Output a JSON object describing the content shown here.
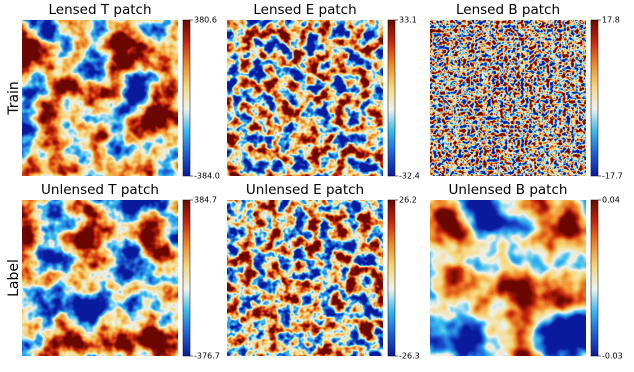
{
  "row_labels": [
    "Train",
    "Label"
  ],
  "colormap": [
    "#0a1a9c",
    "#1f5fd6",
    "#33b8ee",
    "#eef2ee",
    "#f6d77a",
    "#f08a28",
    "#c8280e",
    "#6a0800"
  ],
  "chart_data": [
    {
      "type": "heatmap",
      "title": "Lensed T patch",
      "clim": [
        -384,
        380.6
      ],
      "cticks": [
        {
          "value": -384,
          "label": "-384.0"
        },
        380.6
      ]
    },
    {
      "type": "heatmap",
      "title": "Lensed E patch",
      "clim": [
        -32.4,
        33.1
      ],
      "cticks": [
        -32.4,
        33.1
      ]
    },
    {
      "type": "heatmap",
      "title": "Lensed B patch",
      "clim": [
        -17.7,
        17.8
      ],
      "cticks": [
        -17.7,
        17.8
      ]
    },
    {
      "type": "heatmap",
      "title": "Unlensed T patch",
      "clim": [
        -376.7,
        384.7
      ],
      "cticks": [
        -376.7,
        384.7
      ]
    },
    {
      "type": "heatmap",
      "title": "Unlensed E patch",
      "clim": [
        -26.3,
        26.2
      ],
      "cticks": [
        -26.3,
        26.2
      ]
    },
    {
      "type": "heatmap",
      "title": "Unlensed B patch",
      "clim": [
        -0.03,
        0.04
      ],
      "cticks": [
        -0.03,
        0.04
      ]
    }
  ]
}
